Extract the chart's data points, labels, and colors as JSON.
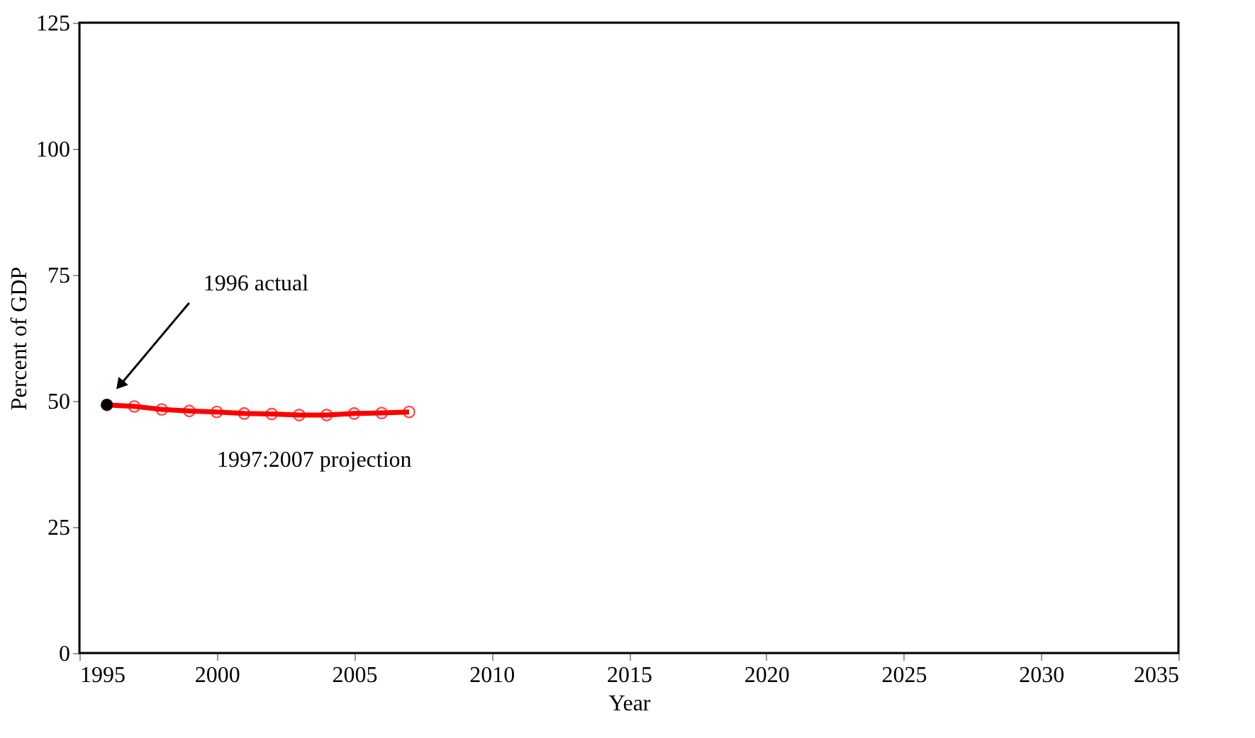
{
  "chart_data": {
    "type": "line",
    "xlabel": "Year",
    "ylabel": "Percent of GDP",
    "xlim": [
      1995,
      2035
    ],
    "xticks": [
      1995,
      2000,
      2005,
      2010,
      2015,
      2020,
      2025,
      2030,
      2035
    ],
    "ylim": [
      0,
      125
    ],
    "yticks": [
      0,
      25,
      50,
      75,
      100,
      125
    ],
    "grid": false,
    "series": [
      {
        "type": "line",
        "color": "#ff0000",
        "marker": "circle",
        "x": [
          1996,
          1997,
          1998,
          1999,
          2000,
          2001,
          2002,
          2003,
          2004,
          2005,
          2006,
          2007
        ],
        "values": [
          49.2,
          48.9,
          48.3,
          48.0,
          47.8,
          47.5,
          47.4,
          47.2,
          47.2,
          47.5,
          47.6,
          47.8
        ]
      },
      {
        "type": "scatter",
        "color": "#000000",
        "marker": "circle",
        "x": [
          1996
        ],
        "values": [
          49.2
        ]
      }
    ],
    "annotations": [
      "1996 actual",
      {
        "text": "1997:2007 projection",
        "x": 2002,
        "y": 47.4
      }
    ]
  }
}
